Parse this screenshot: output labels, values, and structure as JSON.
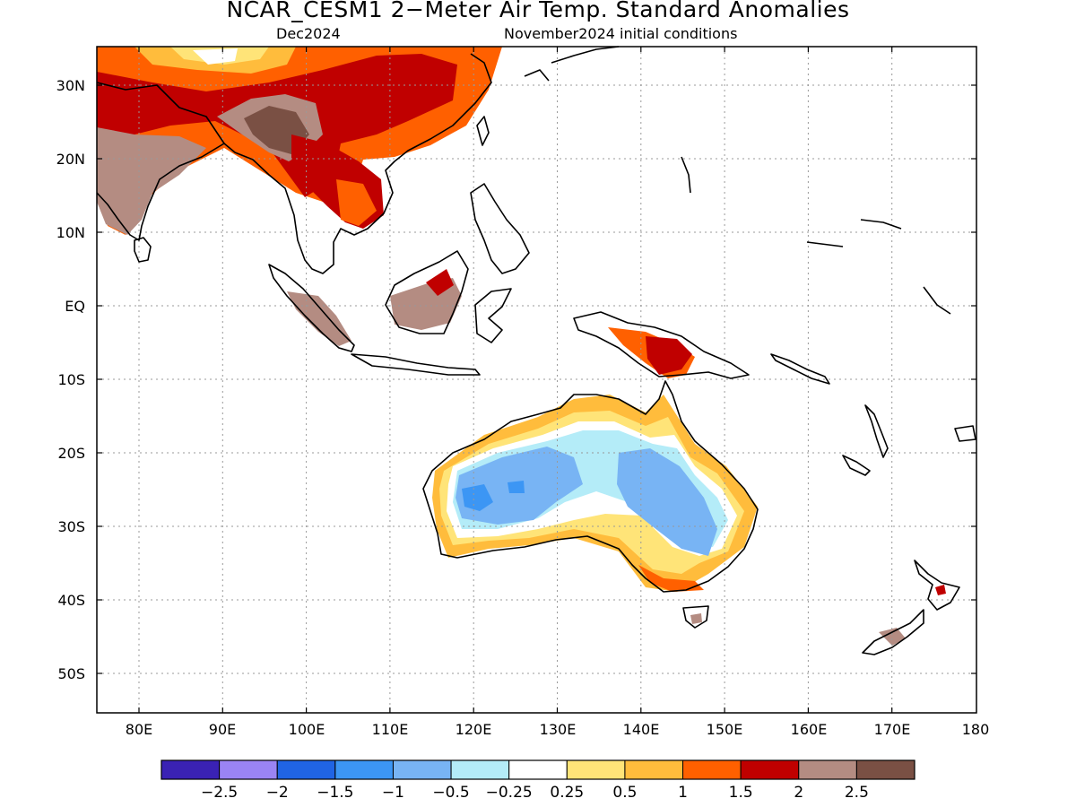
{
  "title": "NCAR_CESM1 2−Meter Air Temp. Standard Anomalies",
  "subtitle_left": "Dec2024",
  "subtitle_right": "November2024 initial conditions",
  "lat_ticks": [
    "30N",
    "20N",
    "10N",
    "EQ",
    "10S",
    "20S",
    "30S",
    "40S",
    "50S"
  ],
  "lon_ticks": [
    "80E",
    "90E",
    "100E",
    "110E",
    "120E",
    "130E",
    "140E",
    "150E",
    "160E",
    "170E",
    "180"
  ],
  "colorbar": {
    "colors": [
      "#3a22b4",
      "#9a84f4",
      "#2064e4",
      "#3c96f4",
      "#78b4f4",
      "#b4ecf8",
      "#ffffff",
      "#ffe478",
      "#ffbc3c",
      "#ff6000",
      "#c00000",
      "#b48c82",
      "#7a5044"
    ],
    "labels": [
      "−2.5",
      "−2",
      "−1.5",
      "−1",
      "−0.5",
      "−0.25",
      "0.25",
      "0.5",
      "1",
      "1.5",
      "2",
      "2.5"
    ]
  }
}
